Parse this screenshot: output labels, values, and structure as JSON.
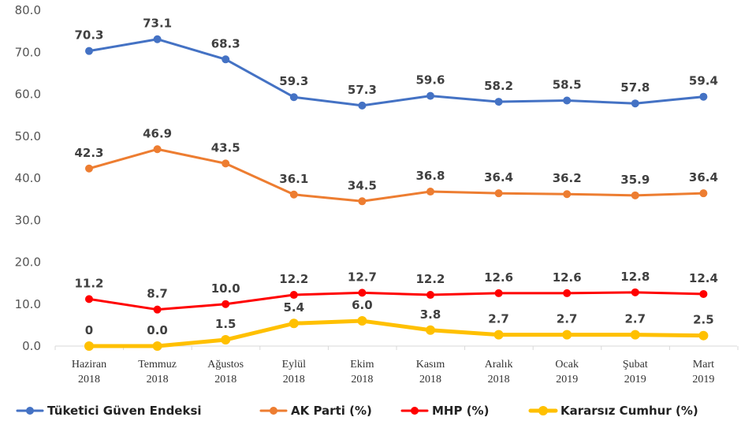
{
  "chart_data": {
    "type": "line",
    "categories": [
      [
        "Haziran",
        "2018"
      ],
      [
        "Temmuz",
        "2018"
      ],
      [
        "Ağustos",
        "2018"
      ],
      [
        "Eylül",
        "2018"
      ],
      [
        "Ekim",
        "2018"
      ],
      [
        "Kasım",
        "2018"
      ],
      [
        "Aralık",
        "2018"
      ],
      [
        "Ocak",
        "2019"
      ],
      [
        "Şubat",
        "2019"
      ],
      [
        "Mart",
        "2019"
      ]
    ],
    "ylim": [
      0,
      80
    ],
    "yticks": [
      "0.0",
      "10.0",
      "20.0",
      "30.0",
      "40.0",
      "50.0",
      "60.0",
      "70.0",
      "80.0"
    ],
    "grid": false,
    "legend": "bottom",
    "series": [
      {
        "name": "Tüketici Güven Endeksi",
        "color": "#4472C4",
        "values": [
          70.3,
          73.1,
          68.3,
          59.3,
          57.3,
          59.6,
          58.2,
          58.5,
          57.8,
          59.4
        ],
        "labels": [
          "70.3",
          "73.1",
          "68.3",
          "59.3",
          "57.3",
          "59.6",
          "58.2",
          "58.5",
          "57.8",
          "59.4"
        ]
      },
      {
        "name": "AK Parti (%)",
        "color": "#ED7D31",
        "values": [
          42.3,
          46.9,
          43.5,
          36.1,
          34.5,
          36.8,
          36.4,
          36.2,
          35.9,
          36.4
        ],
        "labels": [
          "42.3",
          "46.9",
          "43.5",
          "36.1",
          "34.5",
          "36.8",
          "36.4",
          "36.2",
          "35.9",
          "36.4"
        ]
      },
      {
        "name": "MHP (%)",
        "color": "#FF0000",
        "values": [
          11.2,
          8.7,
          10.0,
          12.2,
          12.7,
          12.2,
          12.6,
          12.6,
          12.8,
          12.4
        ],
        "labels": [
          "11.2",
          "8.7",
          "10.0",
          "12.2",
          "12.7",
          "12.2",
          "12.6",
          "12.6",
          "12.8",
          "12.4"
        ]
      },
      {
        "name": "Kararsız Cumhur (%)",
        "color": "#FFC000",
        "values": [
          0,
          0.0,
          1.5,
          5.4,
          6.0,
          3.8,
          2.7,
          2.7,
          2.7,
          2.5
        ],
        "labels": [
          "0",
          "0.0",
          "1.5",
          "5.4",
          "6.0",
          "3.8",
          "2.7",
          "2.7",
          "2.7",
          "2.5"
        ]
      }
    ]
  }
}
